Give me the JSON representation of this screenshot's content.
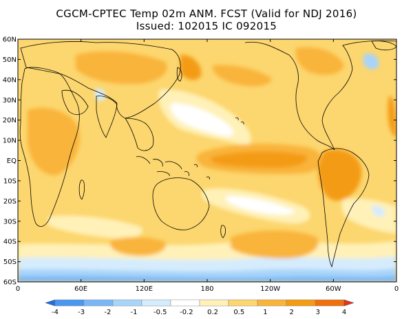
{
  "header": {
    "line1": "CGCM-CPTEC Temp 02m ANM. FCST  (Valid for NDJ 2016)",
    "line2": "Issued:  102015 IC 092015"
  },
  "map": {
    "lat_labels": [
      "60N",
      "50N",
      "40N",
      "30N",
      "20N",
      "10N",
      "EQ",
      "10S",
      "20S",
      "30S",
      "40S",
      "50S",
      "60S"
    ],
    "lon_labels": [
      "0",
      "60E",
      "120E",
      "180",
      "120W",
      "60W",
      "0"
    ]
  },
  "colorbar": {
    "labels": [
      "-4",
      "-3",
      "-2",
      "-1",
      "-0.5",
      "-0.2",
      "0.2",
      "0.5",
      "1",
      "2",
      "3",
      "4"
    ],
    "colors": [
      "#1e6fe0",
      "#4a97f0",
      "#7ab8f5",
      "#a8d4fa",
      "#d5ecfd",
      "#ffffff",
      "#fff1b8",
      "#fcd66e",
      "#f9b43a",
      "#f49b14",
      "#f0700d",
      "#e8321a"
    ],
    "low_arrow_color": "#1e6fe0",
    "high_arrow_color": "#e8321a"
  },
  "palette": {
    "base": "#fcd66e",
    "warm": "#f9b43a",
    "hot": "#f49b14",
    "pale": "#fff1b8",
    "neutral": "#ffffff",
    "cool": "#d5ecfd",
    "cold": "#a8d4fa",
    "colder": "#7ab8f5",
    "coast": "#000000"
  }
}
